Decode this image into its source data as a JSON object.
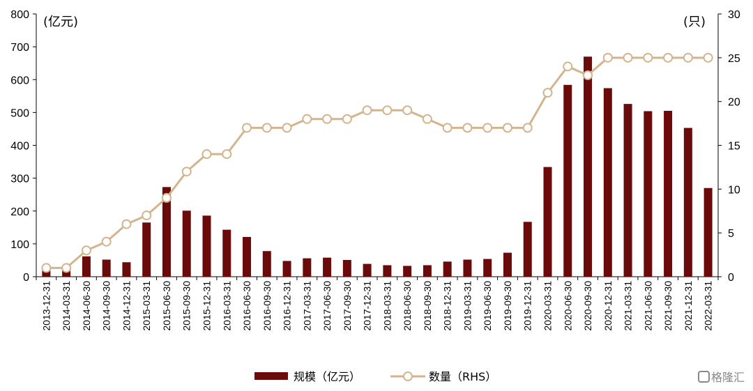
{
  "chart_data": {
    "type": "bar",
    "title": "",
    "xlabel": "",
    "ylabel": "(亿元)",
    "y2label": "(只)",
    "ylim": [
      0,
      800
    ],
    "y2lim": [
      0,
      30
    ],
    "yticks": [
      "0",
      "100",
      "200",
      "300",
      "400",
      "500",
      "600",
      "700",
      "800"
    ],
    "y2ticks": [
      "0",
      "5",
      "10",
      "15",
      "20",
      "25",
      "30"
    ],
    "categories": [
      "2013-12-31",
      "2014-03-31",
      "2014-06-30",
      "2014-09-30",
      "2014-12-31",
      "2015-03-31",
      "2015-06-30",
      "2015-09-30",
      "2015-12-31",
      "2016-03-31",
      "2016-06-30",
      "2016-09-30",
      "2016-12-31",
      "2017-03-31",
      "2017-06-30",
      "2017-09-30",
      "2017-12-31",
      "2018-03-31",
      "2018-06-30",
      "2018-09-30",
      "2018-12-31",
      "2019-03-31",
      "2019-06-30",
      "2019-09-30",
      "2019-12-31",
      "2020-03-31",
      "2020-06-30",
      "2020-09-30",
      "2020-12-31",
      "2021-03-31",
      "2021-06-30",
      "2021-09-30",
      "2021-12-31",
      "2022-03-31"
    ],
    "series": [
      {
        "name": "规模（亿元）",
        "type": "bar",
        "axis": "left",
        "color": "#6b0a0a",
        "values": [
          20,
          25,
          62,
          52,
          44,
          165,
          273,
          201,
          186,
          143,
          121,
          78,
          48,
          56,
          58,
          51,
          39,
          35,
          33,
          35,
          46,
          52,
          54,
          73,
          167,
          334,
          584,
          670,
          574,
          526,
          504,
          505,
          453,
          270
        ]
      },
      {
        "name": "数量（RHS）",
        "type": "line",
        "axis": "right",
        "color": "#d4b48c",
        "values": [
          1,
          1,
          3,
          4,
          6,
          7,
          9,
          12,
          14,
          14,
          17,
          17,
          17,
          18,
          18,
          18,
          19,
          19,
          19,
          18,
          17,
          17,
          17,
          17,
          17,
          21,
          24,
          23,
          25,
          25,
          25,
          25,
          25,
          25
        ]
      }
    ],
    "legend_position": "bottom",
    "grid": false
  },
  "watermark": {
    "text": "格隆汇",
    "icon": "gelonghui-logo-icon"
  }
}
